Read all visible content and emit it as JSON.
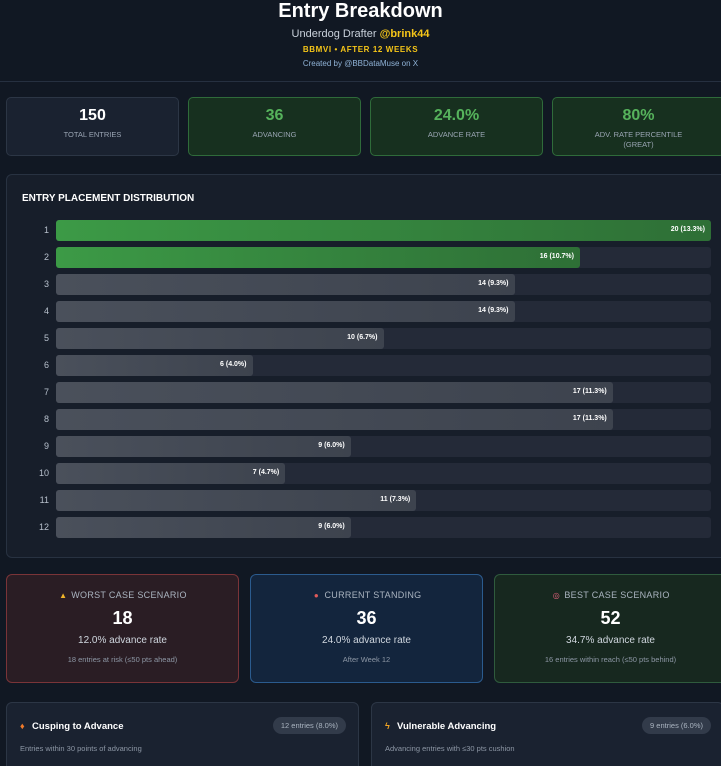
{
  "header": {
    "title": "Entry Breakdown",
    "subtitle_prefix": "Underdog Drafter",
    "handle": "@brink44",
    "tag": "BBMVI • AFTER 12 WEEKS",
    "credit": "Created by @BBDataMuse on X"
  },
  "stats": [
    {
      "value": "150",
      "label": "TOTAL ENTRIES"
    },
    {
      "value": "36",
      "label": "ADVANCING"
    },
    {
      "value": "24.0%",
      "label": "ADVANCE RATE"
    },
    {
      "value": "80%",
      "label": "ADV. RATE PERCENTILE",
      "sublabel": "(GREAT)"
    }
  ],
  "chart_data": {
    "type": "bar",
    "orientation": "horizontal",
    "title": "ENTRY PLACEMENT DISTRIBUTION",
    "categories": [
      "1",
      "2",
      "3",
      "4",
      "5",
      "6",
      "7",
      "8",
      "9",
      "10",
      "11",
      "12"
    ],
    "values": [
      20,
      16,
      14,
      14,
      10,
      6,
      17,
      17,
      9,
      7,
      11,
      9
    ],
    "labels": [
      "20 (13.3%)",
      "16 (10.7%)",
      "14 (9.3%)",
      "14 (9.3%)",
      "10 (6.7%)",
      "6 (4.0%)",
      "17 (11.3%)",
      "17 (11.3%)",
      "9 (6.0%)",
      "7 (4.7%)",
      "11 (7.3%)",
      "9 (6.0%)"
    ],
    "xlim": [
      0,
      20
    ],
    "highlight_categories": [
      "1",
      "2"
    ],
    "colors": {
      "highlight": "#3c9a46",
      "default": "#4a505b",
      "track": "#242a38"
    }
  },
  "scenarios": {
    "worst": {
      "icon": "warning-icon",
      "title": "WORST CASE SCENARIO",
      "value": "18",
      "rate": "12.0% advance rate",
      "note": "18 entries at risk (≤50 pts ahead)"
    },
    "current": {
      "icon": "pin-icon",
      "title": "CURRENT STANDING",
      "value": "36",
      "rate": "24.0% advance rate",
      "note": "After Week 12"
    },
    "best": {
      "icon": "target-icon",
      "title": "BEST CASE SCENARIO",
      "value": "52",
      "rate": "34.7% advance rate",
      "note": "16 entries within reach (≤50 pts behind)"
    }
  },
  "panels": {
    "cusping": {
      "icon": "fire-icon",
      "title": "Cusping to Advance",
      "badge": "12 entries (8.0%)",
      "desc": "Entries within 30 points of advancing"
    },
    "vulnerable": {
      "icon": "lightning-icon",
      "title": "Vulnerable Advancing",
      "badge": "9 entries (6.0%)",
      "desc": "Advancing entries with ≤30 pts cushion"
    }
  }
}
